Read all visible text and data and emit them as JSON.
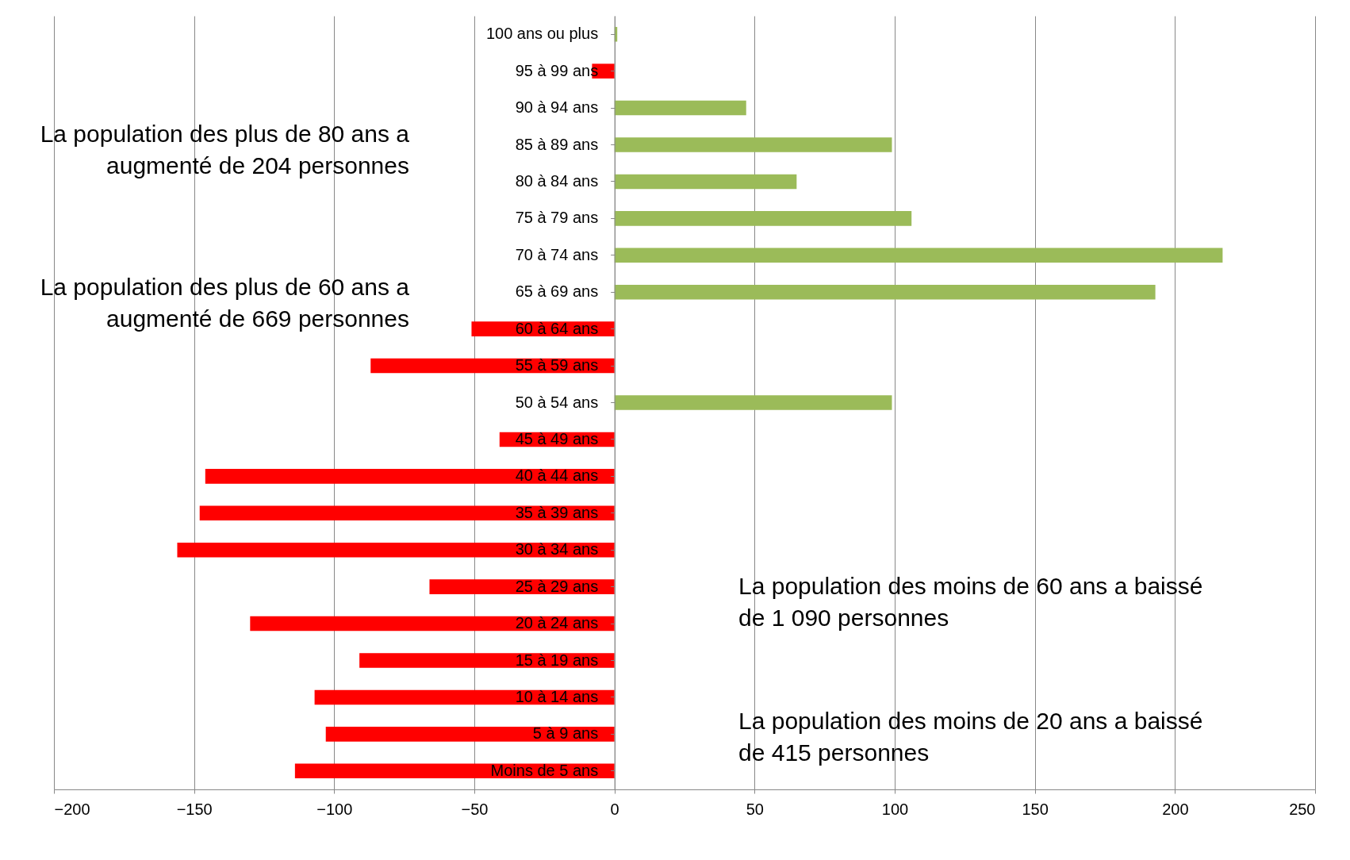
{
  "chart_data": {
    "type": "bar",
    "orientation": "horizontal",
    "categories": [
      "100 ans ou plus",
      "95 à 99 ans",
      "90 à 94 ans",
      "85 à 89 ans",
      "80 à 84 ans",
      "75 à 79 ans",
      "70 à 74 ans",
      "65 à 69 ans",
      "60 à 64 ans",
      "55 à 59 ans",
      "50 à 54 ans",
      "45 à 49 ans",
      "40 à 44 ans",
      "35 à 39 ans",
      "30 à 34 ans",
      "25 à 29 ans",
      "20 à 24 ans",
      "15 à 19 ans",
      "10 à 14 ans",
      "5 à 9 ans",
      "Moins de 5 ans"
    ],
    "values": [
      1,
      -8,
      47,
      99,
      65,
      106,
      217,
      193,
      -51,
      -87,
      99,
      -41,
      -146,
      -148,
      -156,
      -66,
      -130,
      -91,
      -107,
      -103,
      -114
    ],
    "colors": [
      "#9bbb59",
      "#ff0000",
      "#9bbb59",
      "#9bbb59",
      "#9bbb59",
      "#9bbb59",
      "#9bbb59",
      "#9bbb59",
      "#ff0000",
      "#ff0000",
      "#9bbb59",
      "#ff0000",
      "#ff0000",
      "#ff0000",
      "#ff0000",
      "#ff0000",
      "#ff0000",
      "#ff0000",
      "#ff0000",
      "#ff0000",
      "#ff0000"
    ],
    "xlim": [
      -200,
      250
    ],
    "xticks": [
      -200,
      -150,
      -100,
      -50,
      0,
      50,
      100,
      150,
      200,
      250
    ],
    "grid": "x",
    "annotations": [
      "La population des plus de 80 ans a\naugmenté de 204 personnes",
      "La population des plus de 60 ans a\naugmenté de 669 personnes",
      "La population des moins de 60 ans a baissé\nde 1 090 personnes",
      "La population des moins de 20 ans a baissé\nde 415 personnes"
    ]
  }
}
